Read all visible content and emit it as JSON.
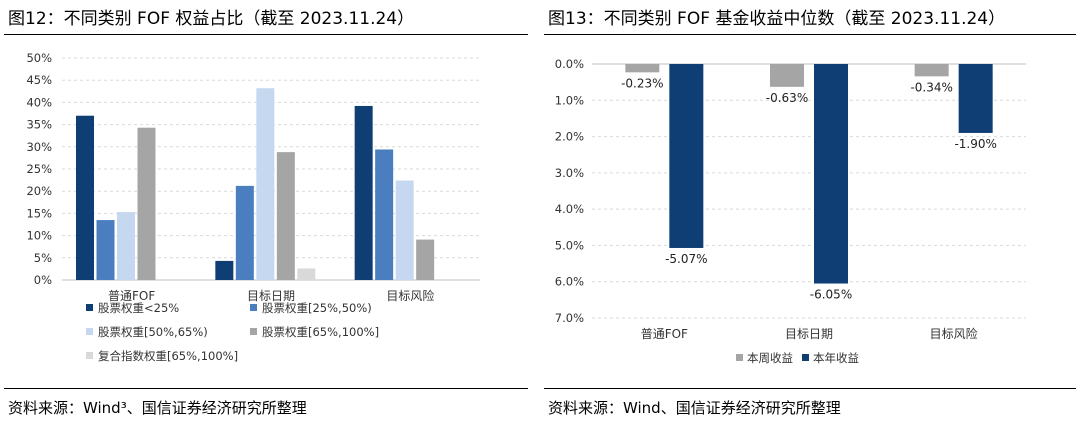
{
  "left": {
    "title": "图12：不同类别 FOF 权益占比（截至 2023.11.24）",
    "source": "资料来源：Wind³、国信证券经济研究所整理"
  },
  "right": {
    "title": "图13：不同类别 FOF 基金收益中位数（截至 2023.11.24）",
    "source": "资料来源：Wind、国信证券经济研究所整理"
  },
  "chart_data": [
    {
      "type": "bar",
      "title": "图12：不同类别 FOF 权益占比（截至 2023.11.24）",
      "categories": [
        "普通FOF",
        "目标日期",
        "目标风险"
      ],
      "series": [
        {
          "name": "股票权重<25%",
          "values": [
            37,
            4.3,
            39.2
          ],
          "color": "#0e3e73"
        },
        {
          "name": "股票权重[25%,50%)",
          "values": [
            13.5,
            21.2,
            29.4
          ],
          "color": "#4a7ebf"
        },
        {
          "name": "股票权重[50%,65%)",
          "values": [
            15.3,
            43.2,
            22.4
          ],
          "color": "#c6d8ef"
        },
        {
          "name": "股票权重[65%,100%]",
          "values": [
            34.3,
            28.8,
            9.1
          ],
          "color": "#a5a5a5"
        },
        {
          "name": "复合指数权重[65%,100%]",
          "values": [
            0,
            2.6,
            0
          ],
          "color": "#d9d9d9"
        }
      ],
      "ylim": [
        0,
        50
      ],
      "yticks": [
        "0%",
        "5%",
        "10%",
        "15%",
        "20%",
        "25%",
        "30%",
        "35%",
        "40%",
        "45%",
        "50%"
      ],
      "grid": true,
      "legend": "bottom"
    },
    {
      "type": "bar",
      "title": "图13：不同类别 FOF 基金收益中位数（截至 2023.11.24）",
      "categories": [
        "普通FOF",
        "目标日期",
        "目标风险"
      ],
      "series": [
        {
          "name": "本周收益",
          "values": [
            -0.23,
            -0.63,
            -0.34
          ],
          "labels": [
            "-0.23%",
            "-0.63%",
            "-0.34%"
          ],
          "color": "#a5a5a5"
        },
        {
          "name": "本年收益",
          "values": [
            -5.07,
            -6.05,
            -1.9
          ],
          "labels": [
            "-5.07%",
            "-6.05%",
            "-1.90%"
          ],
          "color": "#0e3e73"
        }
      ],
      "ylim": [
        -7,
        0
      ],
      "yticks": [
        "0.0%",
        "1.0%",
        "2.0%",
        "3.0%",
        "4.0%",
        "5.0%",
        "6.0%",
        "7.0%"
      ],
      "axis_inverted": true,
      "grid": true,
      "legend": "bottom"
    }
  ]
}
